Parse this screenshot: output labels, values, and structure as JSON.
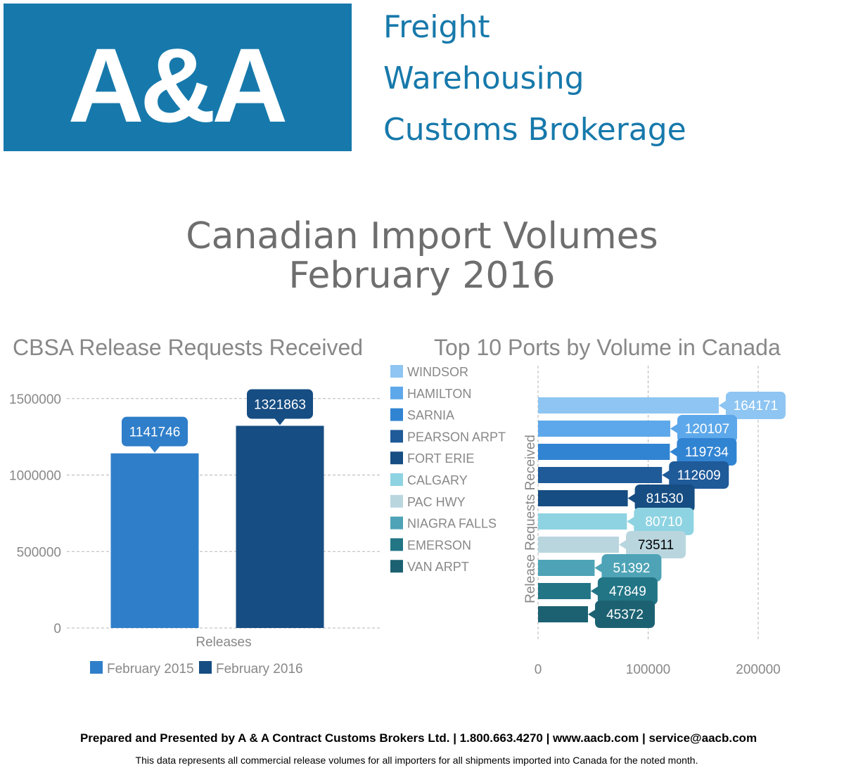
{
  "header": {
    "logo_text": "A&A",
    "services": [
      "Freight",
      "Warehousing",
      "Customs Brokerage"
    ]
  },
  "title": {
    "line1": "Canadian Import Volumes",
    "line2": "February 2016"
  },
  "colors": {
    "brand": "#1779ab",
    "feb2015": "#2f7ec9",
    "feb2016": "#164d82"
  },
  "chart_data": [
    {
      "type": "bar",
      "title": "CBSA Release Requests Received",
      "xlabel": "Releases",
      "ylabel": "",
      "categories": [
        "Releases"
      ],
      "series": [
        {
          "name": "February 2015",
          "values": [
            1141746
          ],
          "color": "#2f7ec9"
        },
        {
          "name": "February 2016",
          "values": [
            1321863
          ],
          "color": "#164d82"
        }
      ],
      "ylim": [
        0,
        1600000
      ],
      "yticks": [
        0,
        500000,
        1000000,
        1500000
      ],
      "grid": true,
      "legend": "bottom"
    },
    {
      "type": "bar",
      "orientation": "horizontal",
      "title": "Top 10 Ports by Volume in Canada",
      "ylabel": "Release Requests Received",
      "xlabel": "",
      "categories": [
        "WINDSOR",
        "HAMILTON",
        "SARNIA",
        "PEARSON ARPT",
        "FORT ERIE",
        "CALGARY",
        "PAC HWY",
        "NIAGRA FALLS",
        "EMERSON",
        "VAN ARPT"
      ],
      "values": [
        164171,
        120107,
        119734,
        112609,
        81530,
        80710,
        73511,
        51392,
        47849,
        45372
      ],
      "colors": [
        "#8ec5f2",
        "#5da8ea",
        "#3184d2",
        "#1f5a99",
        "#164d82",
        "#8ed3e2",
        "#b9d6df",
        "#4ea3b6",
        "#217585",
        "#1c6171"
      ],
      "label_text_colors": [
        "#ffffff",
        "#ffffff",
        "#ffffff",
        "#ffffff",
        "#ffffff",
        "#ffffff",
        "#000000",
        "#ffffff",
        "#ffffff",
        "#ffffff"
      ],
      "xlim": [
        0,
        220000
      ],
      "xticks": [
        0,
        100000,
        200000
      ],
      "grid": true,
      "legend": "top-left"
    }
  ],
  "footer": {
    "main": "Prepared and Presented by A & A Contract Customs Brokers Ltd.  |  1.800.663.4270  |  www.aacb.com | service@aacb.com",
    "note": "This data represents all commercial release volumes for all importers for all shipments imported into Canada for the noted month."
  }
}
